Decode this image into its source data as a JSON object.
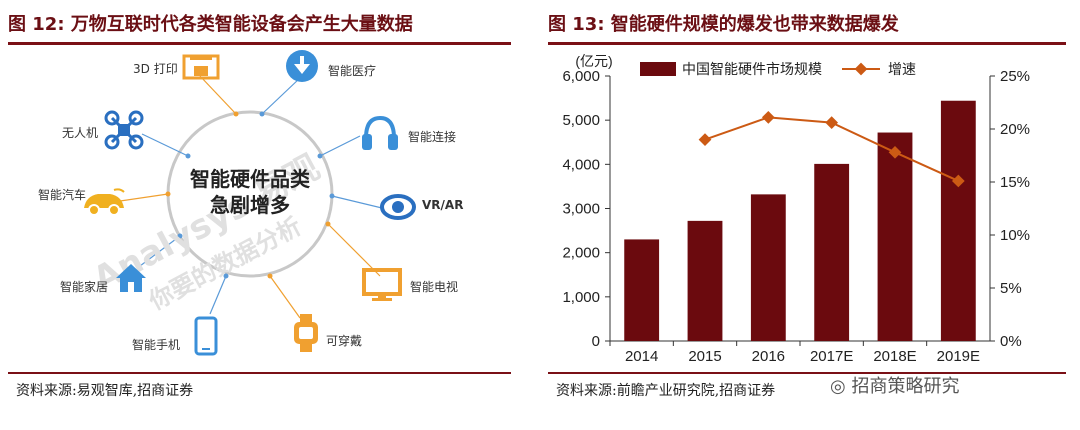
{
  "left": {
    "title": "图 12:  万物互联时代各类智能设备会产生大量数据",
    "source": "资料来源:易观智库,招商证券",
    "center": {
      "line1": "智能硬件品类",
      "line2": "急剧增多"
    },
    "watermark": "Analysys 易观",
    "watermark2": "你要的数据分析",
    "devices": [
      {
        "label": "3D 打印",
        "icon": "3d-printer-icon",
        "color": "#f0a030"
      },
      {
        "label": "智能医疗",
        "icon": "medical-scale-icon",
        "color": "#3a8fd8"
      },
      {
        "label": "无人机",
        "icon": "drone-icon",
        "color": "#2a6fc0"
      },
      {
        "label": "智能连接",
        "icon": "headphones-icon",
        "color": "#3a8fd8"
      },
      {
        "label": "智能汽车",
        "icon": "car-icon",
        "color": "#f0b020"
      },
      {
        "label": "VR/AR",
        "icon": "vr-eye-icon",
        "color": "#2a6fc0"
      },
      {
        "label": "智能家居",
        "icon": "home-icon",
        "color": "#3a8fd8"
      },
      {
        "label": "智能电视",
        "icon": "tv-icon",
        "color": "#f0a030"
      },
      {
        "label": "智能手机",
        "icon": "phone-icon",
        "color": "#3a8fd8"
      },
      {
        "label": "可穿戴",
        "icon": "watch-icon",
        "color": "#f0a030"
      }
    ]
  },
  "right": {
    "title": "图 13:    智能硬件规模的爆发也带来数据爆发",
    "source": "资料来源:前瞻产业研究院,招商证券",
    "watermark_text": "招商策略研究",
    "chart_data": {
      "type": "bar",
      "categories": [
        "2014",
        "2015",
        "2016",
        "2017E",
        "2018E",
        "2019E"
      ],
      "series": [
        {
          "name": "中国智能硬件市场规模",
          "kind": "bar",
          "axis": "left",
          "color": "#6b0a0e",
          "values": [
            2300,
            2720,
            3320,
            4010,
            4720,
            5440
          ]
        },
        {
          "name": "增速",
          "kind": "line",
          "axis": "right",
          "color": "#cc5a14",
          "values": [
            null,
            19.0,
            21.1,
            20.6,
            17.8,
            15.1
          ]
        }
      ],
      "ylabel": "(亿元)",
      "ylim": [
        0,
        6000
      ],
      "y_ticks": [
        "0",
        "1,000",
        "2,000",
        "3,000",
        "4,000",
        "5,000",
        "6,000"
      ],
      "y2lim": [
        0,
        25
      ],
      "y2_ticks": [
        "0%",
        "5%",
        "10%",
        "15%",
        "20%",
        "25%"
      ],
      "grid": false,
      "legend": "top"
    }
  }
}
